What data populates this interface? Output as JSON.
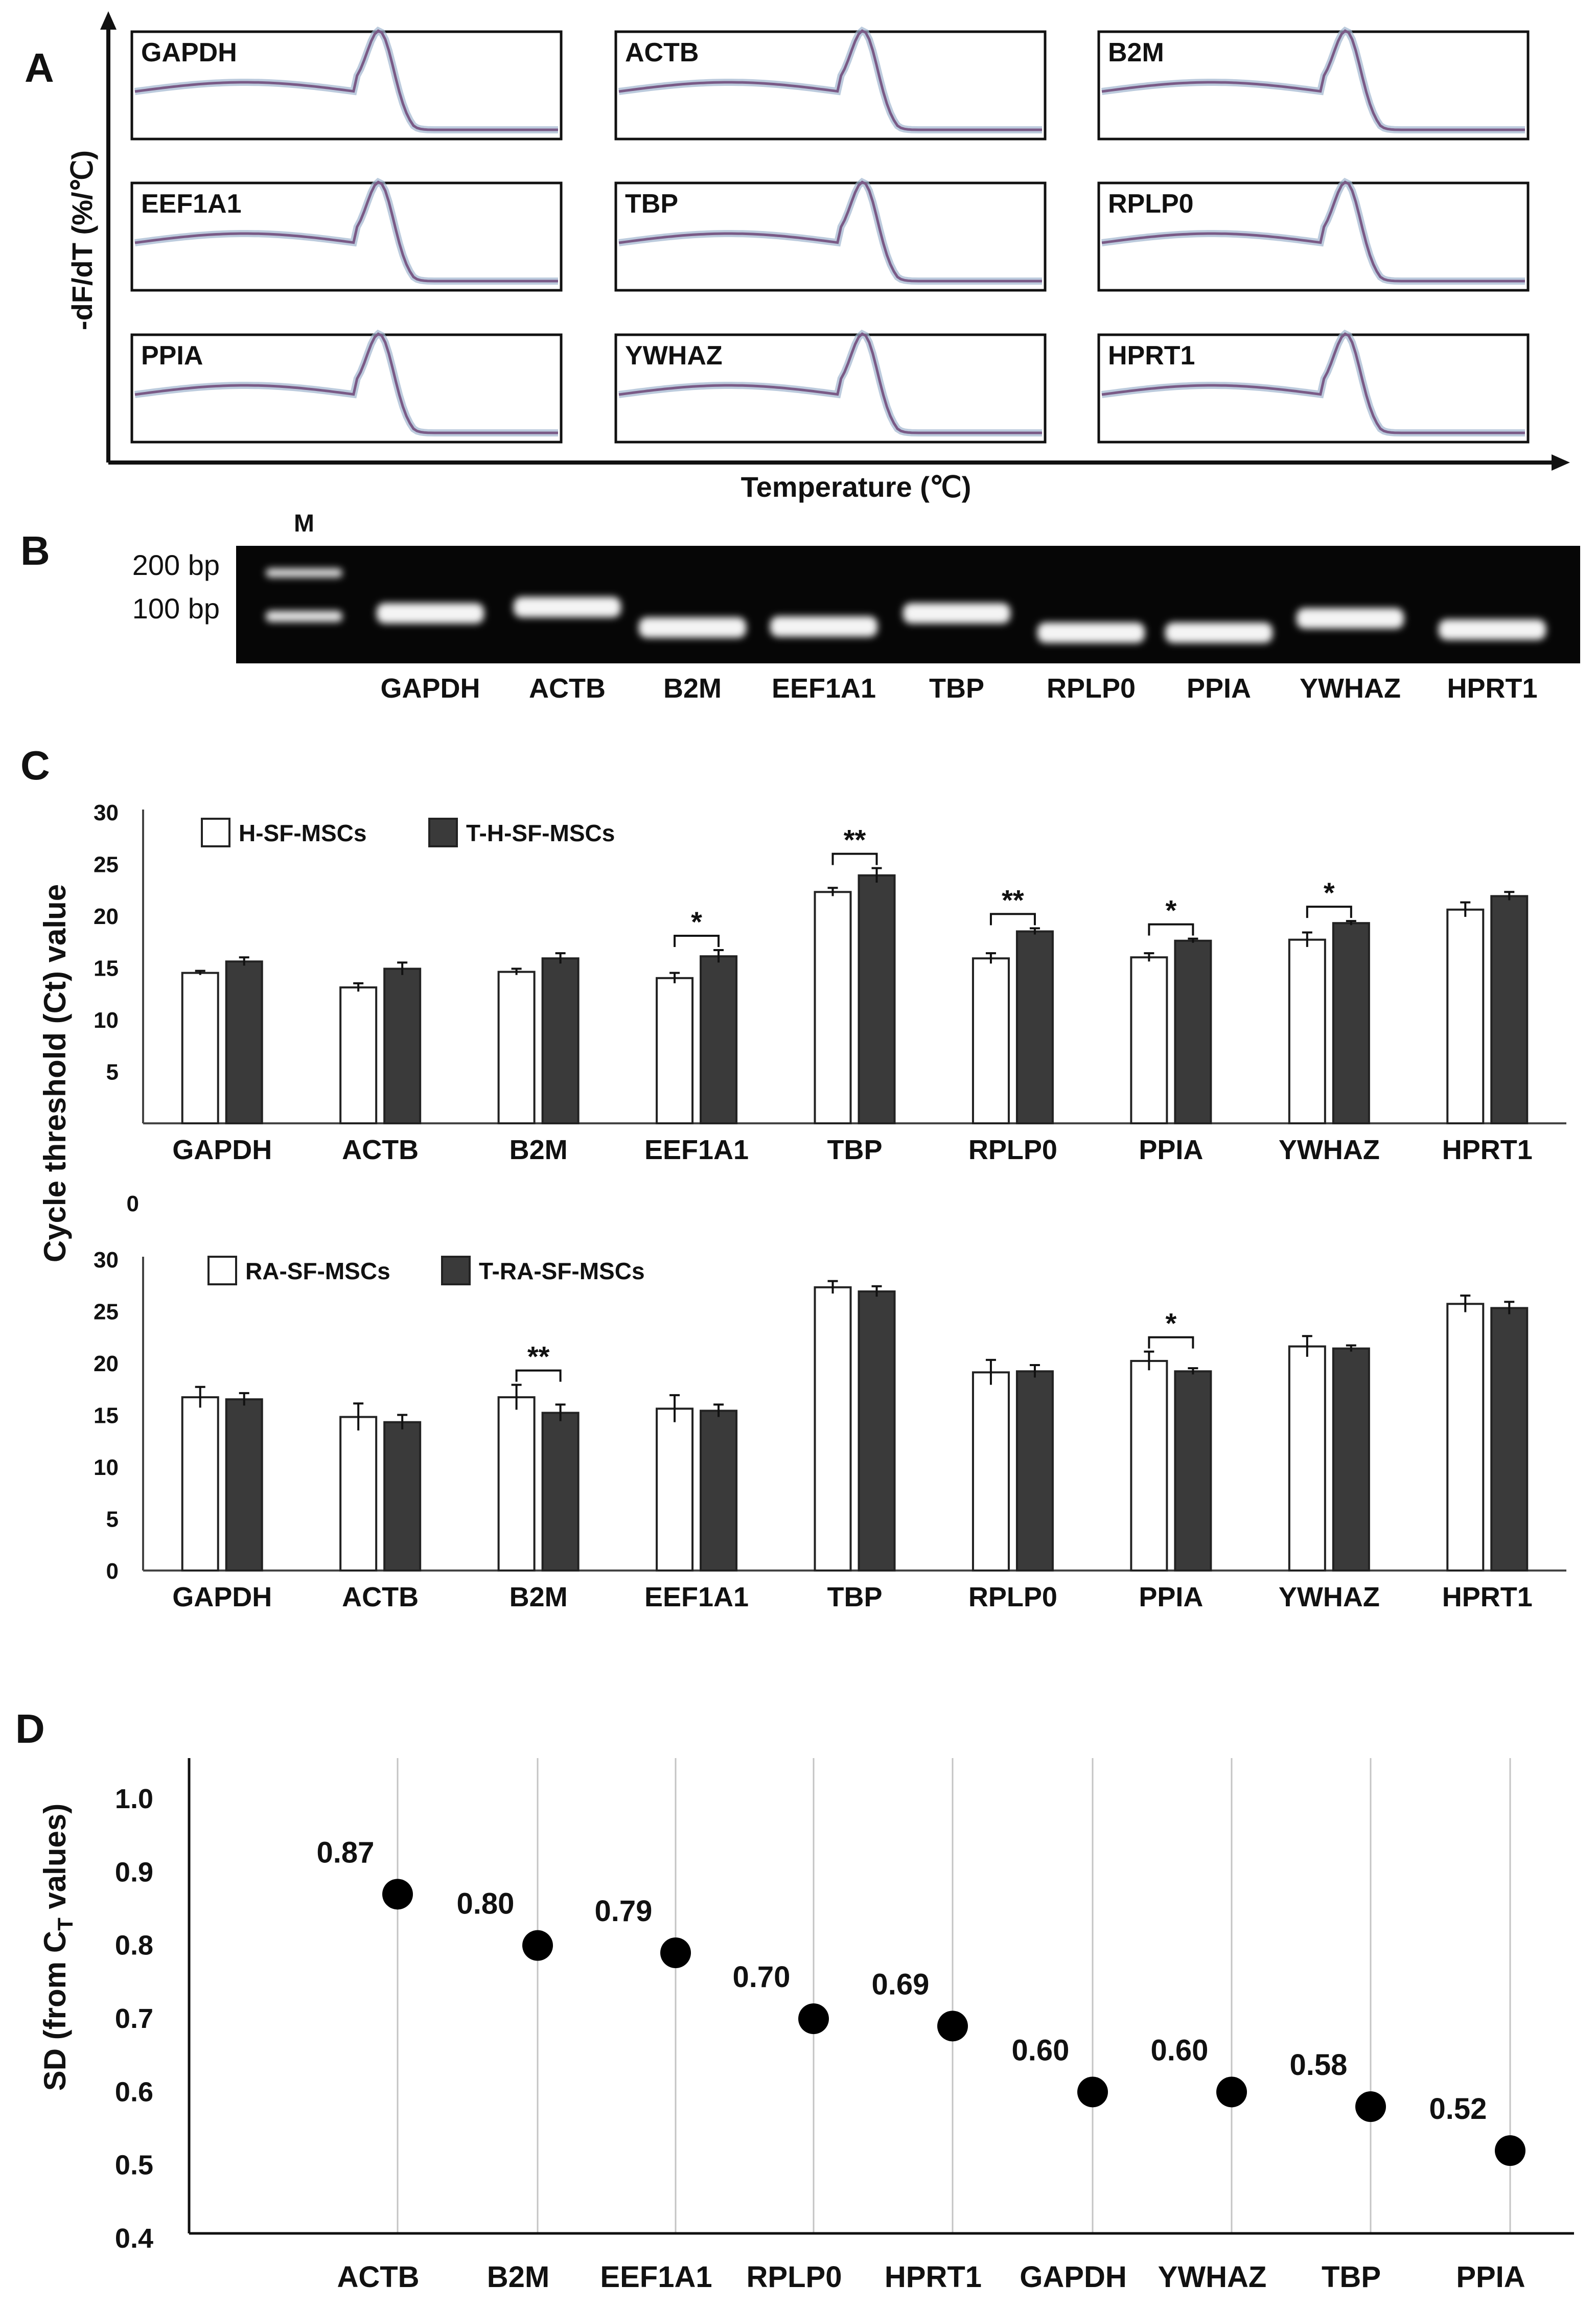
{
  "panels": {
    "A": "A",
    "B": "B",
    "C": "C",
    "D": "D"
  },
  "panelA": {
    "ylabel": "-dF/dT (%/℃)",
    "xlabel": "Temperature (℃)",
    "genes": [
      "GAPDH",
      "ACTB",
      "B2M",
      "EEF1A1",
      "TBP",
      "RPLP0",
      "PPIA",
      "YWHAZ",
      "HPRT1"
    ]
  },
  "panelB": {
    "marker": "M",
    "ladder": [
      "200 bp",
      "100 bp"
    ],
    "lanes": [
      "GAPDH",
      "ACTB",
      "B2M",
      "EEF1A1",
      "TBP",
      "RPLP0",
      "PPIA",
      "YWHAZ",
      "HPRT1"
    ]
  },
  "panelC": {
    "ylabel": "Cycle threshold (Ct) value",
    "zero_label": "0"
  },
  "panelD": {
    "ylabel_prefix": "SD (from C",
    "ylabel_sub": "T",
    "ylabel_suffix": " values)"
  },
  "colors": {
    "dark_bar": "#3a3a3a",
    "light_bar": "#ffffff",
    "curve": "#7a5a86"
  },
  "chart_data": [
    {
      "type": "bar",
      "id": "C-top",
      "categories": [
        "GAPDH",
        "ACTB",
        "B2M",
        "EEF1A1",
        "TBP",
        "RPLP0",
        "PPIA",
        "YWHAZ",
        "HPRT1"
      ],
      "yticks": [
        30,
        25,
        20,
        15,
        10,
        5
      ],
      "ylim": [
        0,
        30
      ],
      "series": [
        {
          "name": "H-SF-MSCs",
          "values": [
            14.5,
            13.1,
            14.6,
            14.0,
            22.3,
            15.9,
            16.0,
            17.7,
            20.6
          ],
          "errors": [
            0.2,
            0.4,
            0.3,
            0.5,
            0.4,
            0.5,
            0.4,
            0.7,
            0.7
          ]
        },
        {
          "name": "T-H-SF-MSCs",
          "values": [
            15.6,
            14.9,
            15.9,
            16.1,
            23.9,
            18.5,
            17.6,
            19.3,
            21.9
          ],
          "errors": [
            0.4,
            0.6,
            0.5,
            0.6,
            0.7,
            0.3,
            0.2,
            0.2,
            0.4
          ]
        }
      ],
      "significance": [
        {
          "category": "EEF1A1",
          "label": "*"
        },
        {
          "category": "TBP",
          "label": "**"
        },
        {
          "category": "RPLP0",
          "label": "**"
        },
        {
          "category": "PPIA",
          "label": "*"
        },
        {
          "category": "YWHAZ",
          "label": "*"
        }
      ]
    },
    {
      "type": "bar",
      "id": "C-bottom",
      "categories": [
        "GAPDH",
        "ACTB",
        "B2M",
        "EEF1A1",
        "TBP",
        "RPLP0",
        "PPIA",
        "YWHAZ",
        "HPRT1"
      ],
      "yticks": [
        30,
        25,
        20,
        15,
        10,
        5,
        0
      ],
      "ylim": [
        0,
        30
      ],
      "series": [
        {
          "name": "RA-SF-MSCs",
          "values": [
            16.7,
            14.8,
            16.7,
            15.6,
            27.3,
            19.1,
            20.2,
            21.6,
            25.7
          ],
          "errors": [
            1.0,
            1.3,
            1.2,
            1.3,
            0.6,
            1.2,
            0.9,
            1.0,
            0.8
          ]
        },
        {
          "name": "T-RA-SF-MSCs",
          "values": [
            16.5,
            14.3,
            15.2,
            15.4,
            26.9,
            19.2,
            19.2,
            21.4,
            25.3
          ],
          "errors": [
            0.6,
            0.7,
            0.8,
            0.6,
            0.5,
            0.6,
            0.3,
            0.3,
            0.6
          ]
        }
      ],
      "significance": [
        {
          "category": "B2M",
          "label": "**"
        },
        {
          "category": "PPIA",
          "label": "*"
        }
      ]
    },
    {
      "type": "scatter",
      "id": "D",
      "categories": [
        "ACTB",
        "B2M",
        "EEF1A1",
        "RPLP0",
        "HPRT1",
        "GAPDH",
        "YWHAZ",
        "TBP",
        "PPIA"
      ],
      "values": [
        0.87,
        0.8,
        0.79,
        0.7,
        0.69,
        0.6,
        0.6,
        0.58,
        0.52
      ],
      "point_labels": [
        "0.87",
        "0.80",
        "0.79",
        "0.70",
        "0.69",
        "0.60",
        "0.60",
        "0.58",
        "0.52"
      ],
      "yticks": [
        "1.0",
        "0.9",
        "0.8",
        "0.7",
        "0.6",
        "0.5",
        "0.4"
      ],
      "ylim": [
        0.4,
        1.0
      ],
      "grid": "vertical"
    }
  ]
}
